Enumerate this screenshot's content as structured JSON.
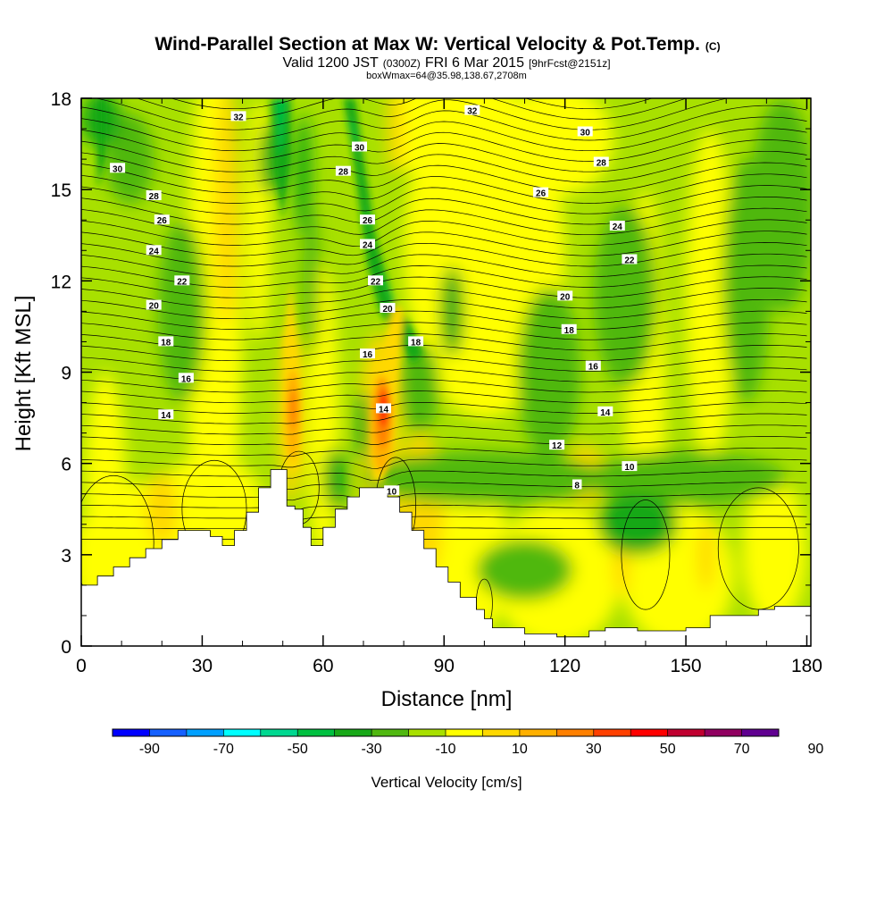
{
  "header": {
    "title": "Wind-Parallel Section at Max W: Vertical Velocity & Pot.Temp.",
    "title_unit": "(C)",
    "valid_prefix": "Valid 1200 JST",
    "valid_zulu": "(0300Z)",
    "valid_date": "FRI 6 Mar 2015",
    "forecast": "[9hrFcst@2151z]",
    "boxwmax": "boxWmax=64@35.98,138.67,2708m"
  },
  "chart_data": {
    "type": "heatmap",
    "xlabel": "Distance [nm]",
    "ylabel": "Height [Kft MSL]",
    "xlim": [
      0,
      181
    ],
    "ylim": [
      0,
      18
    ],
    "x_ticks": [
      "0",
      "30",
      "60",
      "90",
      "120",
      "150",
      "180"
    ],
    "y_ticks": [
      "0",
      "3",
      "6",
      "9",
      "12",
      "15",
      "18"
    ],
    "terrain_profile": [
      [
        0,
        2.0
      ],
      [
        4,
        2.3
      ],
      [
        8,
        2.6
      ],
      [
        12,
        2.9
      ],
      [
        16,
        3.2
      ],
      [
        20,
        3.5
      ],
      [
        24,
        3.8
      ],
      [
        28,
        3.8
      ],
      [
        32,
        3.6
      ],
      [
        35,
        3.3
      ],
      [
        38,
        3.8
      ],
      [
        41,
        4.4
      ],
      [
        44,
        5.2
      ],
      [
        47,
        5.8
      ],
      [
        50,
        5.8
      ],
      [
        51,
        4.6
      ],
      [
        53,
        4.5
      ],
      [
        55,
        3.9
      ],
      [
        57,
        3.3
      ],
      [
        60,
        3.9
      ],
      [
        63,
        4.5
      ],
      [
        66,
        4.9
      ],
      [
        69,
        5.2
      ],
      [
        72,
        5.2
      ],
      [
        75,
        5.2
      ],
      [
        76,
        4.9
      ],
      [
        79,
        4.4
      ],
      [
        82,
        3.8
      ],
      [
        85,
        3.2
      ],
      [
        88,
        2.6
      ],
      [
        91,
        2.1
      ],
      [
        94,
        1.6
      ],
      [
        98,
        1.2
      ],
      [
        100,
        0.9
      ],
      [
        102,
        0.6
      ],
      [
        110,
        0.4
      ],
      [
        118,
        0.3
      ],
      [
        122,
        0.3
      ],
      [
        126,
        0.5
      ],
      [
        130,
        0.6
      ],
      [
        138,
        0.5
      ],
      [
        144,
        0.5
      ],
      [
        150,
        0.6
      ],
      [
        156,
        1.0
      ],
      [
        162,
        1.0
      ],
      [
        168,
        1.2
      ],
      [
        172,
        1.3
      ],
      [
        177,
        1.3
      ],
      [
        181,
        1.4
      ]
    ],
    "theta_isolines": {
      "levels": [
        8,
        10,
        12,
        14,
        16,
        18,
        20,
        22,
        24,
        26,
        28,
        30,
        32
      ],
      "labels_left": [
        "30",
        "28",
        "26",
        "24",
        "22",
        "20",
        "18",
        "16",
        "14"
      ],
      "labels_center": [
        "32",
        "30",
        "28",
        "26",
        "24",
        "22",
        "20",
        "18",
        "16",
        "14",
        "10"
      ],
      "labels_right": [
        "32",
        "30",
        "28",
        "26",
        "24",
        "22",
        "20",
        "18",
        "16",
        "14",
        "12",
        "10",
        "8"
      ]
    },
    "updraft_cores": [
      {
        "x": 74,
        "y": 7.5,
        "w": 58
      },
      {
        "x": 52,
        "y": 8.0,
        "w": 42
      },
      {
        "x": 36,
        "y": 15.0,
        "w": 24
      },
      {
        "x": 67,
        "y": 15.0,
        "w": -26
      }
    ],
    "colorbar": {
      "label": "Vertical Velocity [cm/s]",
      "tick_labels": [
        "-90",
        "-70",
        "-50",
        "-30",
        "-10",
        "10",
        "30",
        "50",
        "70",
        "90"
      ],
      "colors": [
        "#0000ff",
        "#1560ff",
        "#00a0ff",
        "#00ffff",
        "#00d890",
        "#00c040",
        "#18a818",
        "#50b810",
        "#a8e000",
        "#ffff00",
        "#ffd800",
        "#ffb000",
        "#ff8000",
        "#ff4000",
        "#ff0000",
        "#c00030",
        "#900060",
        "#600090"
      ]
    }
  }
}
